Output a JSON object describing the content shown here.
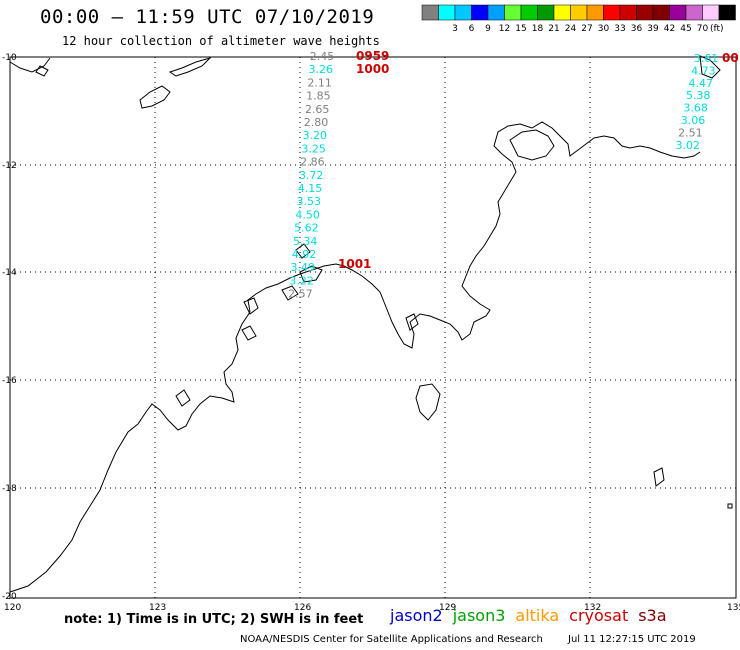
{
  "header": {
    "title": "00:00 – 11:59 UTC 07/10/2019",
    "subtitle": "12 hour collection of altimeter wave heights"
  },
  "legend": {
    "unit": "(ft)",
    "colors": [
      "#808080",
      "#00ffff",
      "#00c8ff",
      "#0000ff",
      "#00a0ff",
      "#66ff33",
      "#00cc00",
      "#009900",
      "#ffff00",
      "#ffcc00",
      "#ff9900",
      "#ff0000",
      "#cc0000",
      "#990000",
      "#800000",
      "#990099",
      "#cc66cc",
      "#ffccff",
      "#000000"
    ],
    "labels": [
      "3",
      "6",
      "9",
      "12",
      "15",
      "18",
      "21",
      "24",
      "27",
      "30",
      "33",
      "36",
      "39",
      "42",
      "45",
      "70"
    ]
  },
  "axes": {
    "lat_labels": [
      "-10",
      "-12",
      "-14",
      "-16",
      "-18",
      "-20"
    ],
    "lon_labels": [
      "120",
      "123",
      "126",
      "129",
      "132",
      "135"
    ]
  },
  "tracks": [
    {
      "values": [
        {
          "v": "2.45",
          "c": "#808080"
        },
        {
          "v": "3.26",
          "c": "#00dcdc"
        },
        {
          "v": "2.11",
          "c": "#808080"
        },
        {
          "v": "1.85",
          "c": "#808080"
        },
        {
          "v": "2.65",
          "c": "#808080"
        },
        {
          "v": "2.80",
          "c": "#808080"
        },
        {
          "v": "3.20",
          "c": "#00dcdc"
        },
        {
          "v": "3.25",
          "c": "#00dcdc"
        },
        {
          "v": "2.86",
          "c": "#808080"
        },
        {
          "v": "3.72",
          "c": "#00dcdc"
        },
        {
          "v": "4.15",
          "c": "#00dcdc"
        },
        {
          "v": "3.53",
          "c": "#00dcdc"
        },
        {
          "v": "4.50",
          "c": "#00dcdc"
        },
        {
          "v": "5.62",
          "c": "#00dcdc"
        },
        {
          "v": "5.34",
          "c": "#00dcdc"
        },
        {
          "v": "4.92",
          "c": "#00dcdc"
        },
        {
          "v": "3.49",
          "c": "#00dcdc"
        },
        {
          "v": "3.22",
          "c": "#00dcdc"
        },
        {
          "v": "2.57",
          "c": "#808080"
        }
      ]
    },
    {
      "values": [
        {
          "v": "3.61",
          "c": "#00dcdc"
        },
        {
          "v": "4.73",
          "c": "#00dcdc"
        },
        {
          "v": "4.47",
          "c": "#00dcdc"
        },
        {
          "v": "5.38",
          "c": "#00dcdc"
        },
        {
          "v": "3.68",
          "c": "#00dcdc"
        },
        {
          "v": "3.06",
          "c": "#00dcdc"
        },
        {
          "v": "2.51",
          "c": "#808080"
        },
        {
          "v": "3.02",
          "c": "#00dcdc"
        }
      ]
    }
  ],
  "pass_times": [
    "0959",
    "1000",
    "1001",
    "00"
  ],
  "footer": {
    "note": "note: 1) Time is in UTC; 2) SWH is in feet",
    "satellites": [
      {
        "name": "jason2",
        "color": "#0000cc"
      },
      {
        "name": "jason3",
        "color": "#00a000"
      },
      {
        "name": "altika",
        "color": "#ff9900"
      },
      {
        "name": "cryosat",
        "color": "#cc0000"
      },
      {
        "name": "s3a",
        "color": "#800000"
      }
    ],
    "credit": "NOAA/NESDIS Center for Satellite Applications and Research",
    "timestamp": "Jul 11 12:27:15 UTC 2019"
  }
}
